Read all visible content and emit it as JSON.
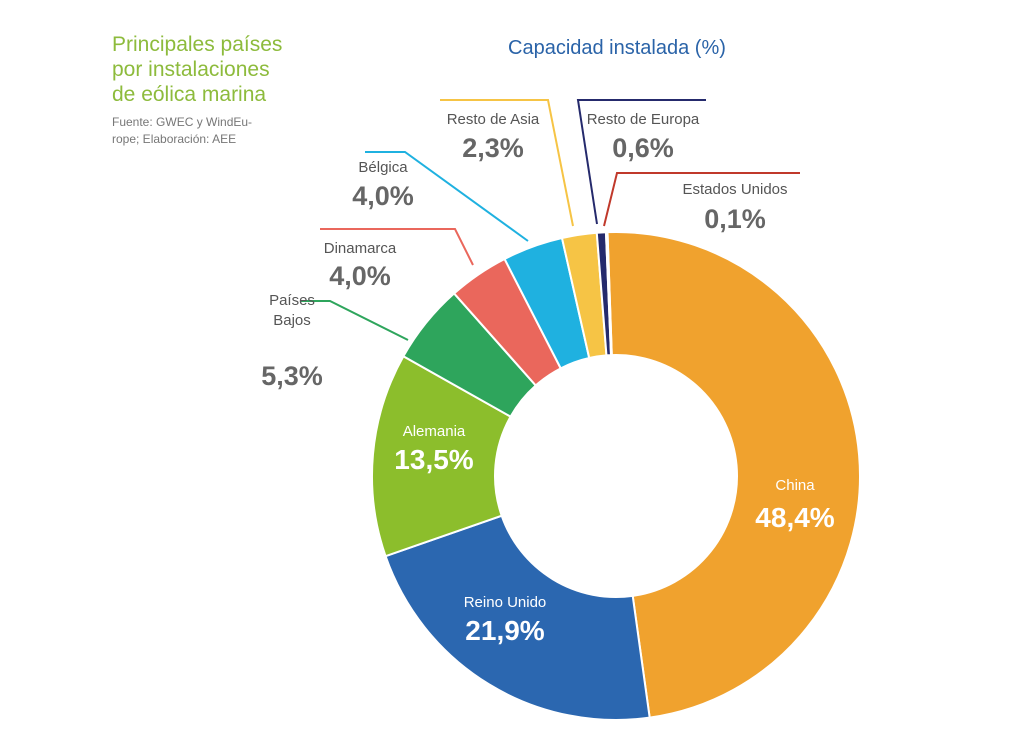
{
  "header": {
    "title_lines": [
      "Principales países",
      "por instalaciones",
      "de eólica marina"
    ],
    "source_lines": [
      "Fuente: GWEC y WindEu-",
      "rope; Elaboración: AEE"
    ]
  },
  "chart_data": {
    "type": "pie",
    "variant": "donut",
    "title": "Capacidad instalada (%)",
    "categories": [
      "China",
      "Reino Unido",
      "Alemania",
      "Países Bajos",
      "Dinamarca",
      "Bélgica",
      "Resto de Asia",
      "Resto de Europa",
      "Estados Unidos"
    ],
    "values": [
      48.4,
      21.9,
      13.5,
      5.3,
      4.0,
      4.0,
      2.3,
      0.6,
      0.1
    ],
    "value_labels": [
      "48,4%",
      "21,9%",
      "13,5%",
      "5,3%",
      "4,0%",
      "4,0%",
      "2,3%",
      "0,6%",
      "0,1%"
    ],
    "label_lines": {
      "Países Bajos": [
        "Países",
        "Bajos"
      ]
    },
    "colors": [
      "#f0a22e",
      "#2b67b0",
      "#8cbe2c",
      "#2ea55c",
      "#ea675c",
      "#1fb1e0",
      "#f6c445",
      "#252a6c",
      "#c0392b"
    ],
    "direction": "clockwise from top",
    "legend": "none"
  }
}
